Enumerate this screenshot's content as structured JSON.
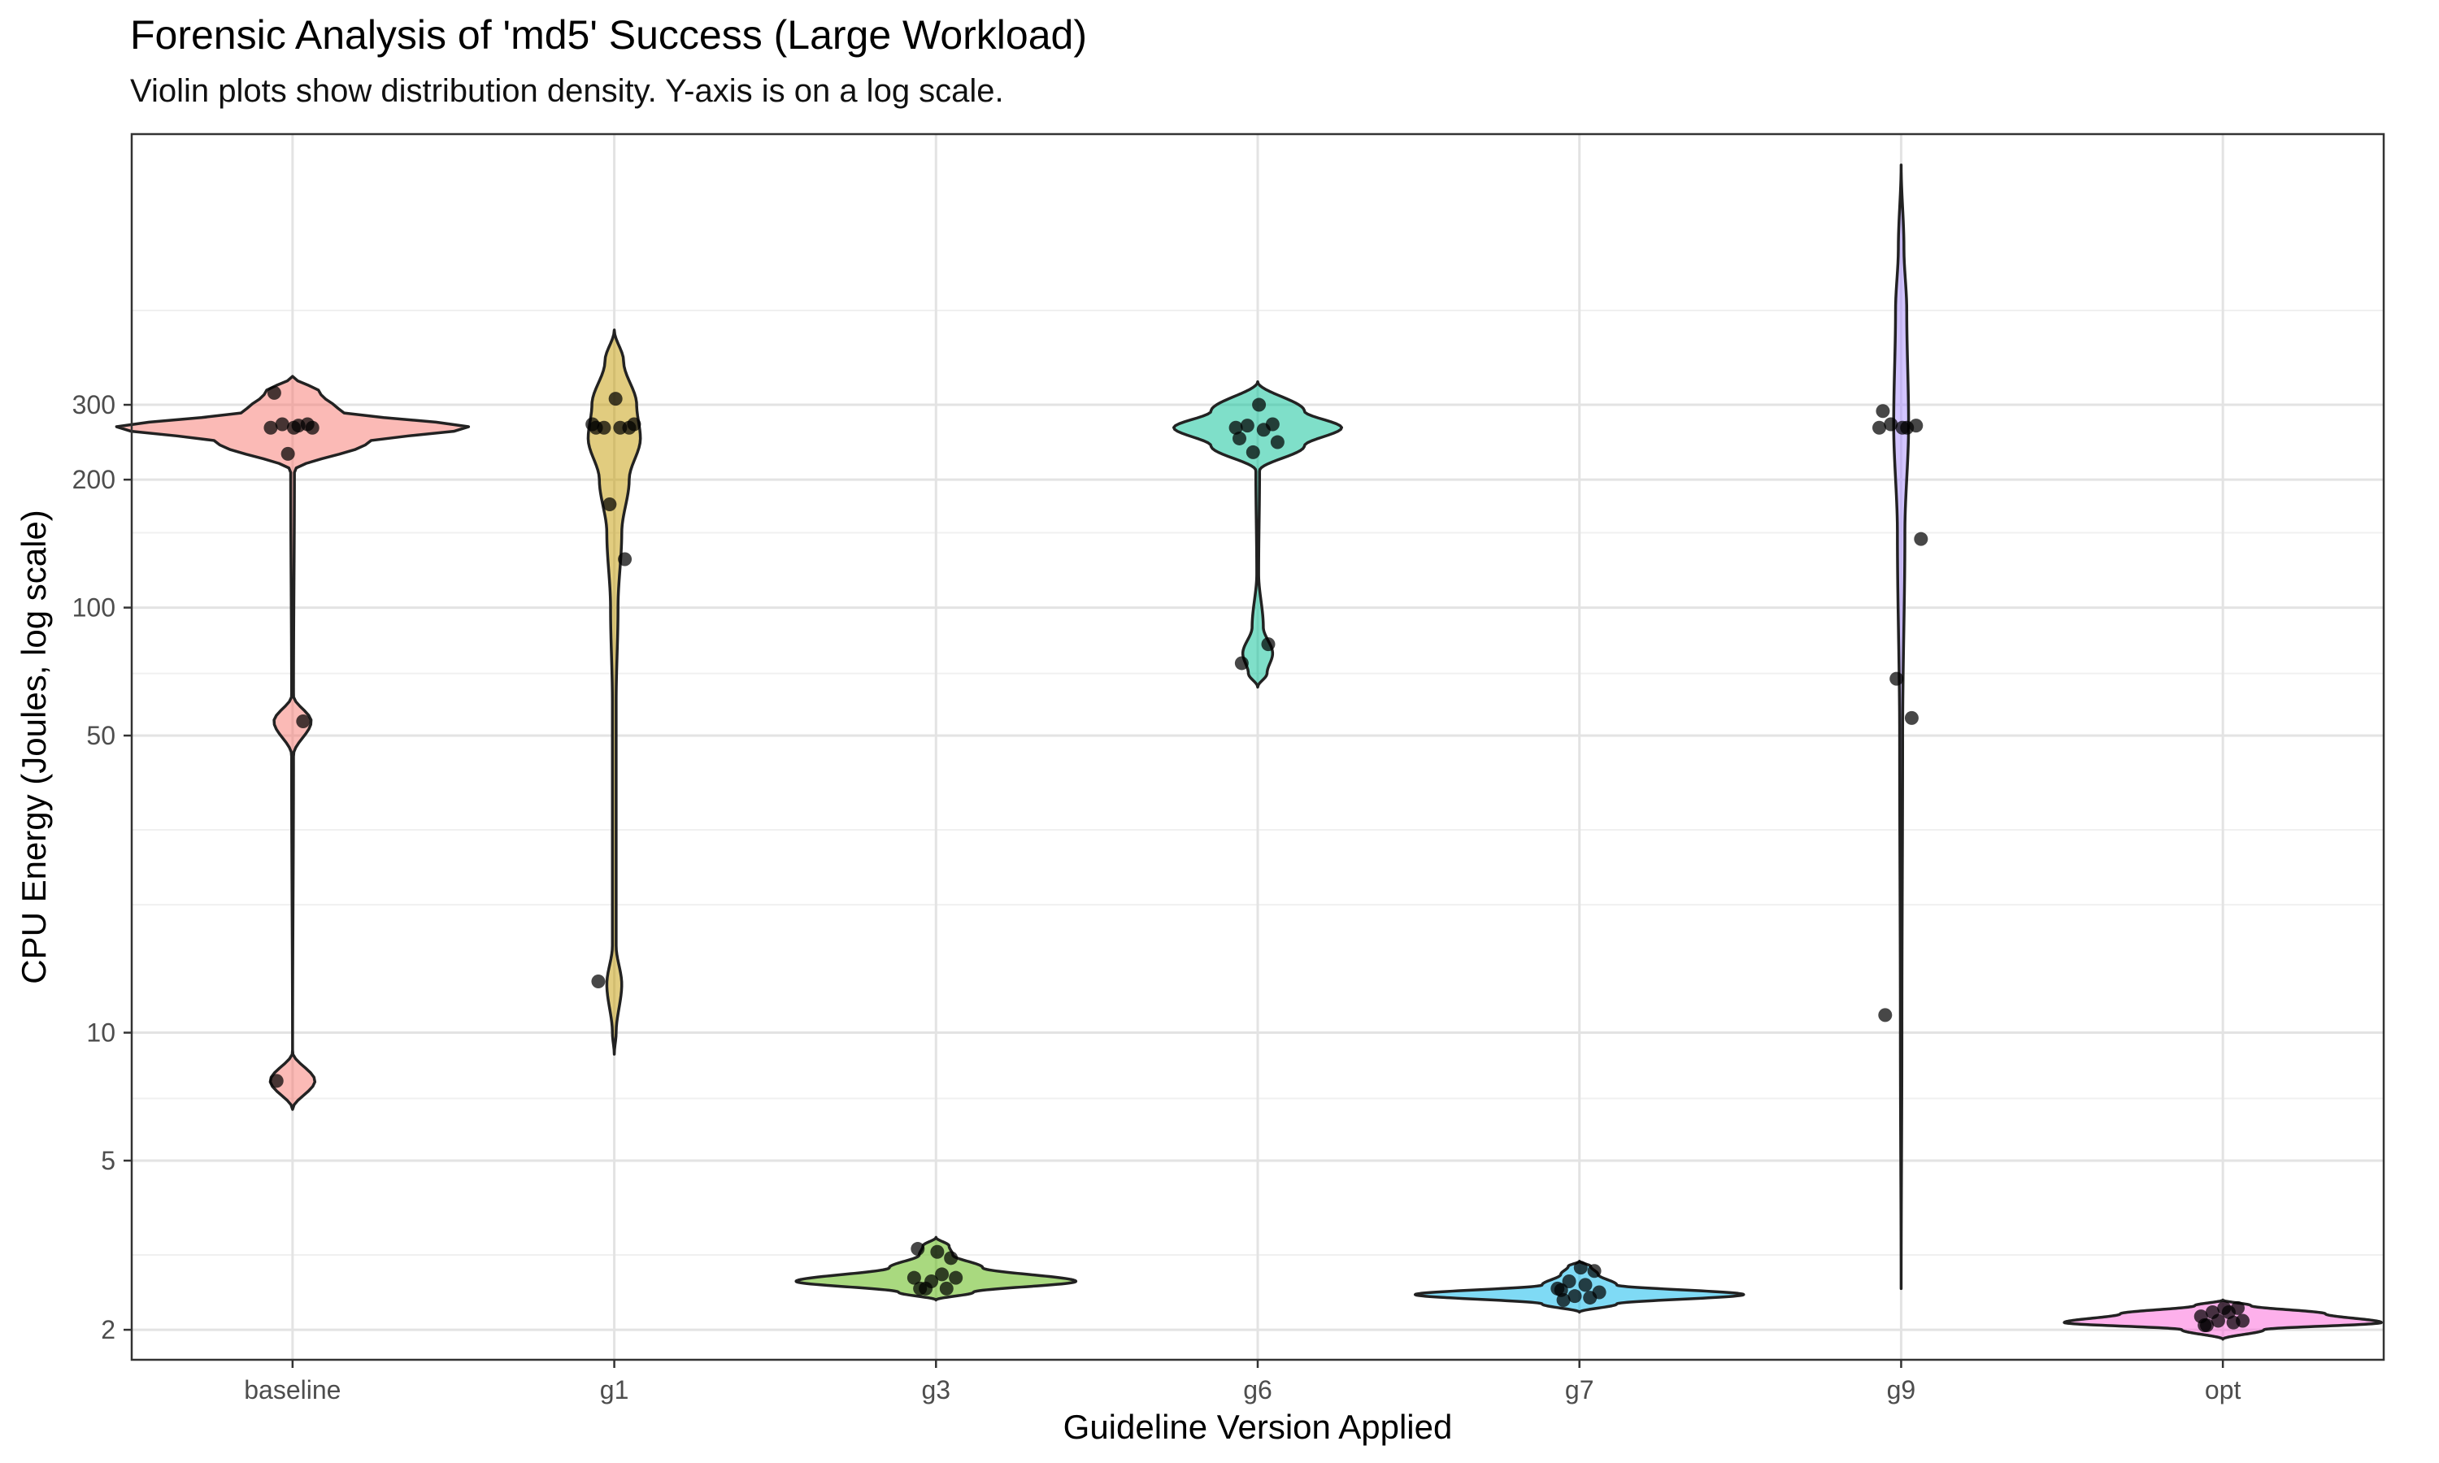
{
  "chart_data": {
    "type": "violin",
    "title": "Forensic Analysis of 'md5' Success (Large Workload)",
    "subtitle": "Violin plots show distribution density. Y-axis is on a log scale.",
    "xlabel": "Guideline Version Applied",
    "ylabel": "CPU Energy (Joules, log scale)",
    "y_scale": "log10",
    "ylim": [
      1.7,
      1300
    ],
    "y_ticks": [
      2,
      5,
      10,
      50,
      100,
      200,
      300
    ],
    "y_minor_gridlines": [
      3,
      7,
      20,
      30,
      70,
      150,
      500
    ],
    "grid": true,
    "legend": "none",
    "categories": [
      "baseline",
      "g1",
      "g3",
      "g6",
      "g7",
      "g9",
      "opt"
    ],
    "groups": [
      {
        "name": "baseline",
        "color": "#F8766D",
        "range": [
          6.6,
          350
        ],
        "density": [
          [
            6.6,
            0
          ],
          [
            7.7,
            0.12
          ],
          [
            9,
            0
          ],
          [
            45,
            0.005
          ],
          [
            54,
            0.1
          ],
          [
            62,
            0.005
          ],
          [
            210,
            0.01
          ],
          [
            245,
            0.4
          ],
          [
            265,
            0.95
          ],
          [
            290,
            0.25
          ],
          [
            320,
            0.15
          ],
          [
            350,
            0
          ]
        ],
        "points": [
          7.7,
          54,
          230,
          265,
          265,
          268,
          270,
          270,
          265,
          320
        ]
      },
      {
        "name": "g1",
        "color": "#C49A00",
        "range": [
          8.9,
          450
        ],
        "density": [
          [
            8.9,
            0
          ],
          [
            10,
            0.01
          ],
          [
            13,
            0.04
          ],
          [
            16,
            0.01
          ],
          [
            60,
            0.01
          ],
          [
            100,
            0.02
          ],
          [
            150,
            0.04
          ],
          [
            200,
            0.08
          ],
          [
            250,
            0.14
          ],
          [
            300,
            0.12
          ],
          [
            380,
            0.05
          ],
          [
            450,
            0
          ]
        ],
        "points": [
          13.2,
          130,
          175,
          270,
          270,
          265,
          265,
          265,
          310,
          265
        ]
      },
      {
        "name": "g3",
        "color": "#53B400",
        "range": [
          2.35,
          3.3
        ],
        "density": [
          [
            2.35,
            0
          ],
          [
            2.45,
            0.2
          ],
          [
            2.6,
            0.75
          ],
          [
            2.8,
            0.25
          ],
          [
            3.0,
            0.09
          ],
          [
            3.15,
            0.07
          ],
          [
            3.3,
            0
          ]
        ],
        "points": [
          2.5,
          2.5,
          2.6,
          2.65,
          2.65,
          2.7,
          2.5,
          2.95,
          3.05,
          3.1
        ]
      },
      {
        "name": "g6",
        "color": "#00C094",
        "range": [
          65,
          340
        ],
        "density": [
          [
            65,
            0
          ],
          [
            70,
            0.05
          ],
          [
            78,
            0.08
          ],
          [
            90,
            0.03
          ],
          [
            120,
            0.005
          ],
          [
            210,
            0.01
          ],
          [
            240,
            0.25
          ],
          [
            265,
            0.45
          ],
          [
            290,
            0.25
          ],
          [
            340,
            0
          ]
        ],
        "points": [
          74,
          82,
          232,
          245,
          265,
          262,
          268,
          270,
          300,
          250
        ]
      },
      {
        "name": "g7",
        "color": "#00B6EB",
        "range": [
          2.2,
          2.9
        ],
        "density": [
          [
            2.2,
            0
          ],
          [
            2.3,
            0.2
          ],
          [
            2.42,
            0.88
          ],
          [
            2.55,
            0.2
          ],
          [
            2.7,
            0.1
          ],
          [
            2.82,
            0.06
          ],
          [
            2.9,
            0
          ]
        ],
        "points": [
          2.35,
          2.38,
          2.4,
          2.45,
          2.5,
          2.55,
          2.6,
          2.75,
          2.8,
          2.48
        ]
      },
      {
        "name": "g9",
        "color": "#A58AFF",
        "range": [
          2.5,
          1100
        ],
        "density": [
          [
            2.5,
            0
          ],
          [
            10,
            0.004
          ],
          [
            50,
            0.008
          ],
          [
            150,
            0.02
          ],
          [
            270,
            0.04
          ],
          [
            500,
            0.03
          ],
          [
            700,
            0.015
          ],
          [
            1100,
            0
          ]
        ],
        "points": [
          11,
          55,
          68,
          145,
          265,
          265,
          270,
          268,
          265,
          290
        ]
      },
      {
        "name": "opt",
        "color": "#FB61D7",
        "range": [
          1.9,
          2.35
        ],
        "density": [
          [
            1.9,
            0
          ],
          [
            2.0,
            0.22
          ],
          [
            2.08,
            0.85
          ],
          [
            2.18,
            0.55
          ],
          [
            2.28,
            0.15
          ],
          [
            2.35,
            0
          ]
        ],
        "points": [
          2.05,
          2.08,
          2.1,
          2.1,
          2.15,
          2.2,
          2.2,
          2.25,
          2.25,
          2.05
        ]
      }
    ]
  }
}
